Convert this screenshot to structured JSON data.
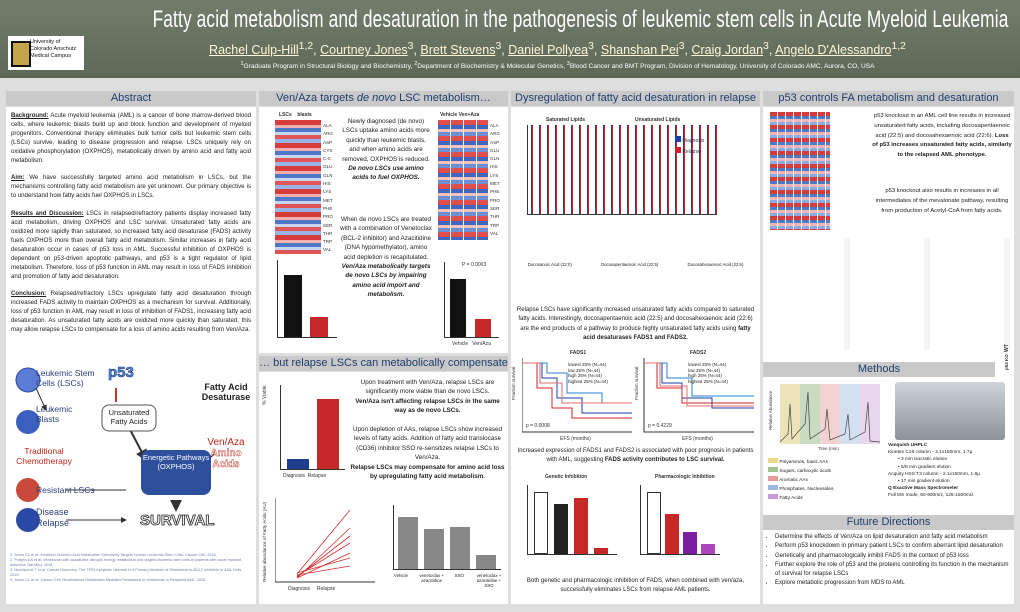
{
  "header": {
    "title": "Fatty acid metabolism and desaturation in the pathogenesis of leukemic stem cells in Acute Myeloid Leukemia",
    "logo": "University of Colorado Anschutz Medical Campus",
    "authors": [
      {
        "name": "Rachel Culp-Hill",
        "sup": "1,2"
      },
      {
        "name": "Courtney Jones",
        "sup": "3"
      },
      {
        "name": "Brett Stevens",
        "sup": "3"
      },
      {
        "name": "Daniel Pollyea",
        "sup": "3"
      },
      {
        "name": "Shanshan Pei",
        "sup": "3"
      },
      {
        "name": "Craig Jordan",
        "sup": "3"
      },
      {
        "name": "Angelo D'Alessandro",
        "sup": "1,2"
      }
    ],
    "affiliations": [
      {
        "sup": "1",
        "text": "Graduate Program in Structural Biology and Biochemistry,"
      },
      {
        "sup": "2",
        "text": "Department of Biochemistry & Molecular Genetics,"
      },
      {
        "sup": "3",
        "text": "Blood Cancer and BMT Program, Division of Hematology, University of Colorado AMC, Aurora, CO, USA"
      }
    ]
  },
  "abstract": {
    "heading": "Abstract",
    "background": {
      "label": "Background:",
      "text": " Acute myeloid leukemia (AML) is a cancer of bone marrow-derived blood cells, where leukemic blasts build up and block function and development of myeloid progenitors. Conventional therapy eliminates bulk tumor cells but leukemic stem cells (LSCs) survive, leading to disease progression and relapse. LSCs uniquely rely on oxidative phosphorylation (OXPHOS), metabolically driven by amino acid and fatty acid metabolism."
    },
    "aim": {
      "label": "Aim:",
      "text": " We have successfully targeted amino acid metabolism in LSCs, but the mechanisms controlling fatty acid metabolism are yet unknown. Our primary objective is to understand how fatty acids fuel OXPHOS in LSCs."
    },
    "results": {
      "label": "Results and Discussion:",
      "text": " LSCs in relapsed/refractory patients display increased fatty acid metabolism, driving OXPHOS and LSC survival. Unsaturated fatty acids are oxidized more rapidly than saturated, so increased fatty acid desaturase (FADS) activity fuels OXPHOS more than overall fatty acid metabolism. Similar increases in fatty acid desaturation occur in cases of p53 loss in AML. Successful inhibition of OXPHOS is dependent on p53-driven apoptotic pathways, and p53 is a tight regulator of lipid metabolism. Therefore, loss of p53 function in AML may result in loss of FADS inhibition and promotion of fatty acid desaturation."
    },
    "conclusion": {
      "label": "Conclusion:",
      "text": " Relapsed/refractory LSCs upregulate fatty acid desaturation through increased FADS activity to maintain OXPHOS as a mechanism for survival. Additionally, loss of p53 function in AML may result in loss of inhibition of FADS1, increasing fatty acid desaturation. As unsaturated fatty acids are oxidized more quickly than saturated, this may allow relapse LSCs to compensate for a loss of amino acids resulting from Ven/Aza."
    }
  },
  "diagram": {
    "lsc": "Leukemic Stem Cells (LSCs)",
    "p53": "p53",
    "fads": "Fatty Acid Desaturase",
    "blasts": "Leukemic Blasts",
    "ufa": "Unsaturated Fatty Acids",
    "venaza": "Ven/Aza",
    "aa": "Amino Acids",
    "chemo": "Traditional Chemotherapy",
    "energy": "Energetic Pathways (OXPHOS)",
    "resistant": "Resistant LSCs",
    "relapse": "Disease Relapse",
    "survival": "SURVIVAL"
  },
  "references": [
    "1. Jones CL et al. Inhibition of Amino Acid Metabolism Selectively Targets Human Leukemia Stem Cells. Cancer Cell. 2018.",
    "2. Pollyea DA et al. Venetoclax with azacitidine disrupts energy metabolism and targets leukemia stem cells in patients with acute myeloid leukemia. Nat Med. 2018.",
    "3. Nechiporuk T et al. Cancer Discovery. The TP53 Apoptotic Network Is a Primary Mediator of Resistance to BCL2 Inhibition in AML Cells. 2019.",
    "4. Jones CL et al. Cancer Cell. Nicotinamide Metabolism Mediates Resistance to Venetoclax in Relapsed AML. 2020."
  ],
  "venaza": {
    "heading_pre": "Ven/Aza targets ",
    "heading_em": "de novo",
    "heading_post": " LSC metabolism…",
    "heat1_cols": [
      "LSCs",
      "blasts"
    ],
    "heat1_rows": [
      "ALA",
      "ARG",
      "ASP",
      "CYS",
      "C-C",
      "GLU",
      "GLN",
      "HIS",
      "LYS",
      "MET",
      "PHE",
      "PRO",
      "SER",
      "THR",
      "TRP",
      "VAL"
    ],
    "heat2_title": "Vehicle Ven+Aza",
    "heat2_rows": [
      "ALA",
      "ARG",
      "ASP",
      "GLU",
      "GLN",
      "HIS",
      "LYS",
      "MET",
      "PHE",
      "PRO",
      "SER",
      "THR",
      "TRP",
      "VAL"
    ],
    "text1": "Newly diagnosed (de novo) LSCs uptake amino acids more quickly than leukemic blasts, and when amino acids are removed, OXPHOS is reduced.",
    "text1b": "De novo LSCs use amino acids to fuel OXPHOS.",
    "text2": "When de novo LSCs are treated with a combination of Venetoclax (BCL-2 inhibitor) and Azacitidine (DNA hypomethylator), amino acid depletion is recapitulated.",
    "text2b": "Ven/Aza metabolically targets de novo LSCs by impairing amino acid import and metabolism.",
    "pval": "P = 0.0003",
    "xlabels": [
      "Vehicle",
      "Ven/Aza"
    ]
  },
  "compensate": {
    "heading": "… but relapse LSCs can metabolically compensate",
    "text1": "Upon treatment with Ven/Aza, relapse LSCs are significantly more viable than de novo LSCs.",
    "text1b": "Ven/Aza isn't affecting relapse LSCs in the same way as de novo LSCs.",
    "text2": "Upon depletion of AAs, relapse LSCs show increased levels of fatty acids. Addition of fatty acid translocase (CD36) inhibitor SSO re-sensitizes relapse LSCs to Ven/Aza.",
    "text2b": "Relapse LSCs may compensate for amino acid loss by upregulating fatty acid metabolism.",
    "ylabel_viable": "% Viable",
    "ylabel_fa": "Relative abundance of Fatty Acids (AU)",
    "xlabels": [
      "Diagnosis",
      "Relapse"
    ],
    "treat_labels": [
      "Vehicle",
      "venetoclax + azacitidine",
      "SSO",
      "venetoclax + azacitidine + SSO"
    ]
  },
  "desat": {
    "heading": "Dysregulation of fatty acid desaturation in relapse",
    "sat": "Saturated Lipids",
    "unsat": "Unsaturated Lipids",
    "legend": [
      "Diagnosis",
      "Relapse"
    ],
    "dots": [
      "Docosanoic Acid (22:0)",
      "Docosapentaenoic Acid (22:5)",
      "Docosahexaenoic Acid (22:6)"
    ],
    "text1": "Relapse LSCs have significantly increased unsaturated fatty acids compared to saturated fatty acids. Interestingly, docosapentaenoic acid (22:5) and docosahexaenoic acid (22:6) are the end products of a pathway to produce highly unsaturated fatty acids using ",
    "text1b": "fatty acid desaturases FADS1 and FADS2.",
    "km_titles": [
      "FADS1",
      "FADS2"
    ],
    "km_legend": [
      "lowest 25% (N=44)",
      "low 25% (N=44)",
      "high 25% (N=44)",
      "highest 25% (N=44)"
    ],
    "km_p": [
      "p = 0.0008",
      "p = 0.4229"
    ],
    "km_x": "EFS (months)",
    "km_y": "Fraction survival",
    "text2": "Increased expression of FADS1 and FADS2 is associated with poor prognosis in patients with AML, suggesting ",
    "text2b": "FADS activity contributes to LSC survival.",
    "inhib": [
      "Genetic Inhibition",
      "Pharmacologic Inhibition"
    ],
    "text3": "Both genetic and pharmacologic inhibition of FADS, when combined with ven/aza, successfully eliminates LSCs from relapse AML patients."
  },
  "p53": {
    "heading": "p53 controls FA metabolism and desaturation",
    "text1": "p53 knockout in an AML cell line results in increased unsaturated fatty acids, including docosapentaenoic acid (22:5) and docosahexaenoic acid (22:6). ",
    "text1b": "Loss of p53 increases unsaturated fatty acids, similarly to the relapsed AML phenotype.",
    "text2": "p53 knockout also results in increases in all intermediates of the mevalonate pathway, resulting from production of Acetyl-CoA from fatty acids.",
    "groups": [
      "WT",
      "p53 KO"
    ]
  },
  "methods": {
    "heading": "Methods",
    "ylabel": "Relative Abundance",
    "xlabel": "Time (min)",
    "legend": [
      "Polyamines, basic AAs",
      "Sugars, carboxylic acids",
      "Aromatic AAs",
      "Phosphates, Nucleosides",
      "Fatty Acids"
    ],
    "lines": [
      "Vanquish UHPLC",
      "Kinetex C18 column - 2.1x150mm, 1.7µ",
      "3 min isocratic elution",
      "5/9 min gradient elution",
      "Acquity HSS T3 column - 2.1x150mm, 1.8µ",
      "17 min gradient elution",
      "Q Exactive Mass Spectrometer",
      "Full MS mode, 60-900m/z, 125-1500m/z"
    ]
  },
  "future": {
    "heading": "Future Directions",
    "items": [
      "Determine the effects of Ven/Aza on lipid desaturation and fatty acid metabolism",
      "Perform p53 knockdown in primary patient LSCs to confirm aberrant lipid desaturation",
      "Genetically and pharmacologically inhibit FADS in the context of p53 loss",
      "Further explore the role of p53 and the proteins controlling its function in the mechanism of survival for relapse LSCs",
      "Explore metabolic progression from MDS to AML"
    ]
  }
}
